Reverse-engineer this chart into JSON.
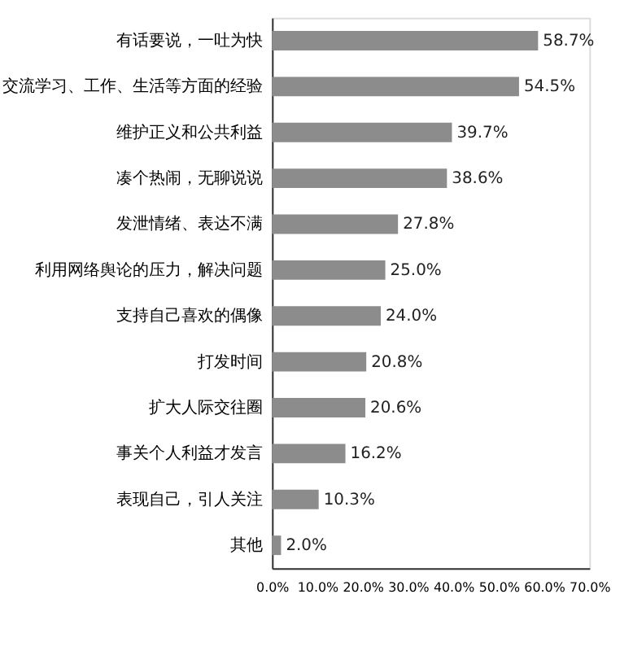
{
  "chart_data": {
    "type": "bar",
    "orientation": "horizontal",
    "categories": [
      "有话要说，一吐为快",
      "交流学习、工作、生活等方面的经验",
      "维护正义和公共利益",
      "凑个热闹，无聊说说",
      "发泄情绪、表达不满",
      "利用网络舆论的压力，解决问题",
      "支持自己喜欢的偶像",
      "打发时间",
      "扩大人际交往圈",
      "事关个人利益才发言",
      "表现自己，引人关注",
      "其他"
    ],
    "values": [
      58.7,
      54.5,
      39.7,
      38.6,
      27.8,
      25.0,
      24.0,
      20.8,
      20.6,
      16.2,
      10.3,
      2.0
    ],
    "value_labels": [
      "58.7%",
      "54.5%",
      "39.7%",
      "38.6%",
      "27.8%",
      "25.0%",
      "24.0%",
      "20.8%",
      "20.6%",
      "16.2%",
      "10.3%",
      "2.0%"
    ],
    "color": "#8c8c8c",
    "xlim": [
      0,
      70
    ],
    "xticks": [
      {
        "value": 0,
        "label": "0.0%"
      },
      {
        "value": 10,
        "label": "10.0%"
      },
      {
        "value": 20,
        "label": "20.0%"
      },
      {
        "value": 30,
        "label": "30.0%"
      },
      {
        "value": 40,
        "label": "40.0%"
      },
      {
        "value": 50,
        "label": "50.0%"
      },
      {
        "value": 60,
        "label": "60.0%"
      },
      {
        "value": 70,
        "label": "70.0%"
      }
    ],
    "grid": false
  }
}
